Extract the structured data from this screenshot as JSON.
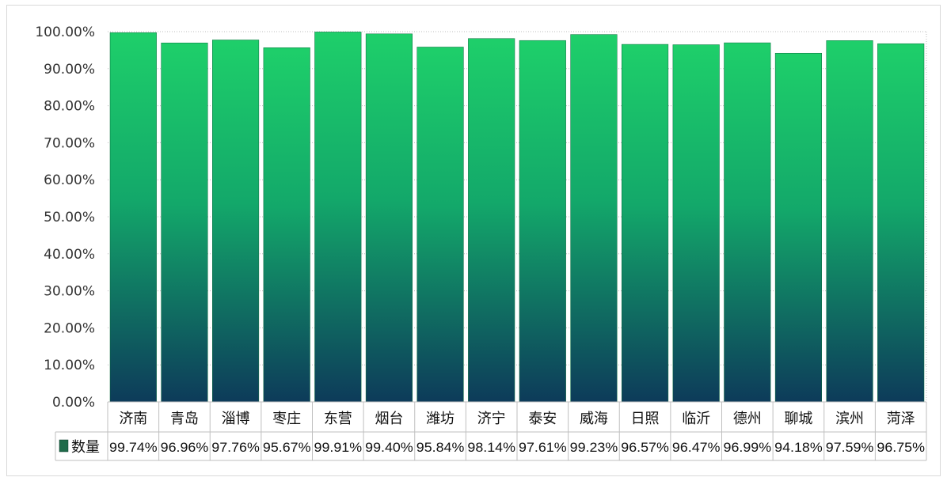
{
  "chart_data": {
    "type": "bar",
    "categories": [
      "济南",
      "青岛",
      "淄博",
      "枣庄",
      "东营",
      "烟台",
      "潍坊",
      "济宁",
      "泰安",
      "威海",
      "日照",
      "临沂",
      "德州",
      "聊城",
      "滨州",
      "菏泽"
    ],
    "series": [
      {
        "name": "数量",
        "values": [
          99.74,
          96.96,
          97.76,
          95.67,
          99.91,
          99.4,
          95.84,
          98.14,
          97.61,
          99.23,
          96.57,
          96.47,
          96.99,
          94.18,
          97.59,
          96.75
        ],
        "value_labels": [
          "99.74%",
          "96.96%",
          "97.76%",
          "95.67%",
          "99.91%",
          "99.40%",
          "95.84%",
          "98.14%",
          "97.61%",
          "99.23%",
          "96.57%",
          "96.47%",
          "96.99%",
          "94.18%",
          "97.59%",
          "96.75%"
        ]
      }
    ],
    "ylim": [
      0,
      100
    ],
    "yticks": [
      0,
      10,
      20,
      30,
      40,
      50,
      60,
      70,
      80,
      90,
      100
    ],
    "ytick_labels": [
      "0.00%",
      "10.00%",
      "20.00%",
      "30.00%",
      "40.00%",
      "50.00%",
      "60.00%",
      "70.00%",
      "80.00%",
      "90.00%",
      "100.00%"
    ],
    "title": "",
    "xlabel": "",
    "ylabel": "",
    "grid": "dotted",
    "data_table": true,
    "colors": {
      "bar_top": "#1ecf6a",
      "bar_bottom": "#0d3b5a",
      "legend_key": "#1f6b4a",
      "grid": "#bdbdbd",
      "table_border": "#bfbfbf"
    }
  }
}
